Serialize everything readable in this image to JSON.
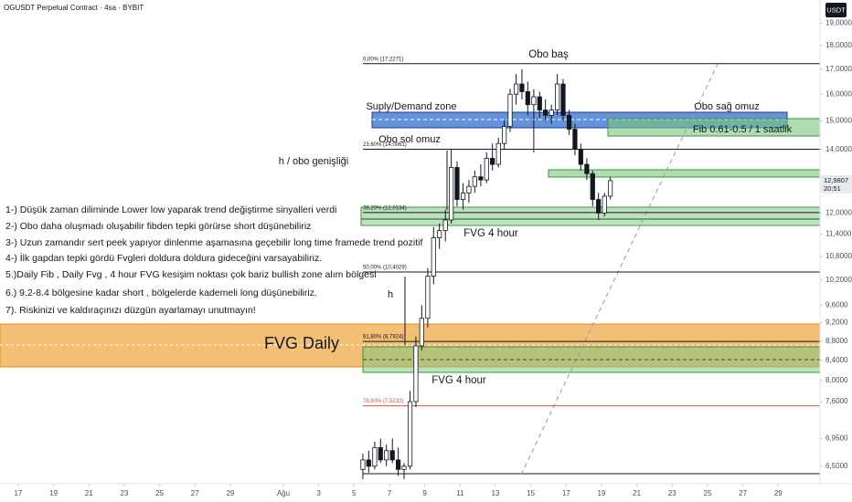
{
  "header": {
    "symbol": "OGUSDT Perpetual Contract · 4sa · BYBIT",
    "currency": "USDT"
  },
  "chart_data": {
    "type": "candlestick",
    "x": [
      4.5,
      4.83,
      5.17,
      5.5,
      5.83,
      6.17,
      6.5,
      6.83,
      7.17,
      7.5,
      7.83,
      8.17,
      8.5,
      8.83,
      9.17,
      9.5,
      9.83,
      10.17,
      10.5,
      10.83,
      11.17,
      11.5,
      11.83,
      12.17,
      12.5,
      12.83,
      13.17,
      13.5,
      13.83,
      14.17,
      14.5,
      14.83,
      15.17,
      15.5,
      15.83,
      16.17,
      16.5,
      16.83,
      17.17,
      17.5,
      17.83,
      18.17,
      18.5
    ],
    "open": [
      6.45,
      6.6,
      6.5,
      6.8,
      6.6,
      6.75,
      6.6,
      6.45,
      6.5,
      7.6,
      8.7,
      9.3,
      10.3,
      11.3,
      11.5,
      11.8,
      13.4,
      12.4,
      12.6,
      12.8,
      13.1,
      13.0,
      13.7,
      13.5,
      14.2,
      14.8,
      16.0,
      16.4,
      16.1,
      15.6,
      15.9,
      15.4,
      15.2,
      15.4,
      16.4,
      15.2,
      14.7,
      14.0,
      13.5,
      13.2,
      12.4,
      12.0,
      12.5
    ],
    "high": [
      6.7,
      6.75,
      6.9,
      6.95,
      6.85,
      6.95,
      6.8,
      6.55,
      7.8,
      8.9,
      9.6,
      10.5,
      11.6,
      11.7,
      12.1,
      14.0,
      13.6,
      12.9,
      13.0,
      13.3,
      13.5,
      13.9,
      14.2,
      14.4,
      15.0,
      16.2,
      16.8,
      17.0,
      16.5,
      16.2,
      16.1,
      15.8,
      15.6,
      16.8,
      16.6,
      15.4,
      14.9,
      14.2,
      13.7,
      13.3,
      12.6,
      12.6,
      13.1
    ],
    "low": [
      6.3,
      6.4,
      6.45,
      6.55,
      6.5,
      6.55,
      6.35,
      6.3,
      6.45,
      7.5,
      8.6,
      9.1,
      10.1,
      11.0,
      11.2,
      11.7,
      12.2,
      12.1,
      12.3,
      12.6,
      12.8,
      12.9,
      13.3,
      13.4,
      14.0,
      14.6,
      15.6,
      15.8,
      15.2,
      13.9,
      15.1,
      15.0,
      14.9,
      15.2,
      15.0,
      14.5,
      13.8,
      13.3,
      13.0,
      12.2,
      11.8,
      11.9,
      12.4
    ],
    "close": [
      6.6,
      6.5,
      6.8,
      6.6,
      6.75,
      6.6,
      6.45,
      6.5,
      7.6,
      8.7,
      9.3,
      10.3,
      11.3,
      11.5,
      11.8,
      13.4,
      12.4,
      12.6,
      12.8,
      13.1,
      13.0,
      13.7,
      13.5,
      14.2,
      14.8,
      16.0,
      16.4,
      16.1,
      15.6,
      15.9,
      15.4,
      15.2,
      15.4,
      16.4,
      15.2,
      14.7,
      14.0,
      13.5,
      13.2,
      12.4,
      12.0,
      12.5,
      12.98
    ],
    "up_color": "#ffffff",
    "down_color": "#131722",
    "log_scale": true,
    "grid": false,
    "ylim": [
      6.23,
      20.1
    ],
    "yticks": [
      {
        "value": 19,
        "label": "19,0000"
      },
      {
        "value": 18,
        "label": "18,0000"
      },
      {
        "value": 17,
        "label": "17,0000"
      },
      {
        "value": 16,
        "label": "16,0000"
      },
      {
        "value": 15,
        "label": "15,0000"
      },
      {
        "value": 14,
        "label": "14,0000"
      },
      {
        "value": 12,
        "label": "12,0000"
      },
      {
        "value": 11.4,
        "label": "11,4000"
      },
      {
        "value": 10.8,
        "label": "10,8000"
      },
      {
        "value": 10.2,
        "label": "10,2000"
      },
      {
        "value": 9.6,
        "label": "9,6000"
      },
      {
        "value": 9.2,
        "label": "9,2000"
      },
      {
        "value": 8.8,
        "label": "8,8000"
      },
      {
        "value": 8.4,
        "label": "8,4000"
      },
      {
        "value": 8,
        "label": "8,0000"
      },
      {
        "value": 7.6,
        "label": "7,6000"
      },
      {
        "value": 6.95,
        "label": "6,9500"
      },
      {
        "value": 6.5,
        "label": "6,5000"
      }
    ],
    "xlim": [
      -16.03,
      30.26
    ],
    "xticks": [
      {
        "value": -15,
        "label": "17"
      },
      {
        "value": -13,
        "label": "19"
      },
      {
        "value": -11,
        "label": "21"
      },
      {
        "value": -9,
        "label": "23"
      },
      {
        "value": -7,
        "label": "25"
      },
      {
        "value": -5,
        "label": "27"
      },
      {
        "value": -3,
        "label": "29"
      },
      {
        "value": 0,
        "label": "Ağu"
      },
      {
        "value": 2,
        "label": "3"
      },
      {
        "value": 4,
        "label": "5"
      },
      {
        "value": 6,
        "label": "7"
      },
      {
        "value": 8,
        "label": "9"
      },
      {
        "value": 10,
        "label": "11"
      },
      {
        "value": 12,
        "label": "13"
      },
      {
        "value": 14,
        "label": "15"
      },
      {
        "value": 16,
        "label": "17"
      },
      {
        "value": 18,
        "label": "19"
      },
      {
        "value": 20,
        "label": "21"
      },
      {
        "value": 22,
        "label": "23"
      },
      {
        "value": 24,
        "label": "25"
      },
      {
        "value": 26,
        "label": "27"
      },
      {
        "value": 28,
        "label": "29"
      }
    ],
    "last_price": {
      "value": 12.9807,
      "label": "12,9807"
    },
    "countdown": "20:51",
    "fib_levels": [
      {
        "value": 17.2271,
        "label": "0,00% (17,2271)",
        "color": "#131722"
      },
      {
        "value": 14.0061,
        "label": "23,60% (14,0061)",
        "color": "#131722"
      },
      {
        "value": 12.0134,
        "label": "38,20% (12,0134)",
        "color": "#131722"
      },
      {
        "value": 10.4029,
        "label": "50,00% (10,4029)",
        "color": "#131722"
      },
      {
        "value": 8.7924,
        "label": "61,80% (8,7924)",
        "color": "#131722"
      },
      {
        "value": 7.5232,
        "label": "78,60% (7,5232)",
        "color": "#e0533f"
      }
    ],
    "annotations": [
      "Obo baş",
      "Suply/Demand zone",
      "Obo sağ omuz",
      "Obo sol omuz",
      "Fib 0.61-0.5 / 1 saatlik",
      "h / obo genişliği",
      "FVG 4 hour",
      "FVG Daily",
      "FVG 4 hour",
      "h"
    ],
    "notes": [
      "1-) Düşük zaman diliminde Lower low yaparak trend değiştirme sinyalleri verdi",
      "2-) Obo daha oluşmadı oluşabilir fibden tepki görürse short düşünebiliriz",
      "3-) Uzun zamandır sert peek yapıyor dinlenme aşamasına geçebilir long time framede trend pozitif",
      "4-) İlk gapdan tepki gördü Fvgleri doldura doldura gideceğini varsayabiliriz.",
      "5.)Daily Fib , Daily Fvg , 4 hour FVG kesişim noktası çok bariz bullish zone alım bölgesi",
      "6.) 9.2-8.4 bölgesine kadar short , bölgelerde kademeli long düşünebiliriz.",
      "7). Riskinizi ve kaldıraçınızı düzgün ayarlamayı unutmayın!"
    ]
  }
}
